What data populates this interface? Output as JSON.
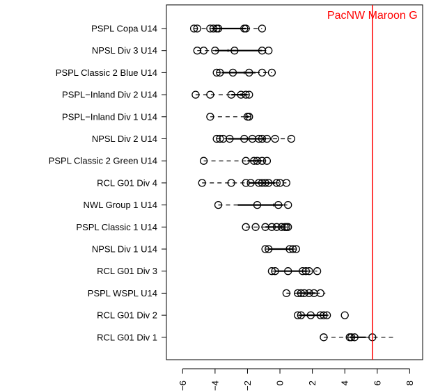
{
  "chart_data": {
    "type": "boxplot",
    "orientation": "horizontal",
    "title": "",
    "xlabel": "",
    "ylabel": "",
    "xlim": [
      -7,
      8.8
    ],
    "xticks": [
      -6,
      -4,
      -2,
      0,
      2,
      4,
      6,
      8
    ],
    "tick_labels_rotated": true,
    "grid": false,
    "legend": "none",
    "reference_line": {
      "x": 5.7,
      "label": "PacNW Maroon G",
      "color": "#ff0000"
    },
    "categories": [
      {
        "name": "PSPL Copa U14",
        "whisker_low": -5.3,
        "q1": -4.2,
        "median": -3.6,
        "q3": -2.1,
        "whisker_high": -1.1,
        "outliers": [
          -5.3,
          -5.1,
          -4.3,
          -4.1,
          -3.9,
          -3.8,
          -2.2,
          -2.1,
          -1.1
        ]
      },
      {
        "name": "NPSL Div 3 U14",
        "whisker_low": -5.1,
        "q1": -4.0,
        "median": -3.2,
        "q3": -1.1,
        "whisker_high": -0.7,
        "outliers": [
          -5.1,
          -4.7,
          -4.0,
          -2.8,
          -1.1,
          -0.7
        ]
      },
      {
        "name": "PSPL Classic 2 Blue U14",
        "whisker_low": -3.9,
        "q1": -3.6,
        "median": -2.2,
        "q3": -1.5,
        "whisker_high": -0.5,
        "outliers": [
          -3.9,
          -3.7,
          -2.9,
          -1.9,
          -1.1,
          -0.5
        ]
      },
      {
        "name": "PSPL−Inland Div 2 U14",
        "whisker_low": -5.2,
        "q1": -3.0,
        "median": -2.4,
        "q3": -2.0,
        "whisker_high": -1.9,
        "outliers": [
          -5.2,
          -4.3,
          -3.0,
          -2.4,
          -2.1,
          -1.9
        ]
      },
      {
        "name": "PSPL−Inland Div 1 U14",
        "whisker_low": -4.3,
        "q1": -2.1,
        "median": -2.0,
        "q3": -1.9,
        "whisker_high": -1.8,
        "outliers": [
          -4.3,
          -2.0,
          -1.9
        ]
      },
      {
        "name": "NPSL Div 2 U14",
        "whisker_low": -3.9,
        "q1": -3.2,
        "median": -2.0,
        "q3": -0.9,
        "whisker_high": 0.7,
        "outliers": [
          -3.9,
          -3.7,
          -3.5,
          -3.1,
          -2.2,
          -1.7,
          -1.3,
          -1.1,
          -0.8,
          -0.3,
          0.7
        ]
      },
      {
        "name": "PSPL Classic 2 Green U14",
        "whisker_low": -4.7,
        "q1": -2.0,
        "median": -1.5,
        "q3": -1.1,
        "whisker_high": -0.8,
        "outliers": [
          -4.7,
          -2.1,
          -1.6,
          -1.4,
          -1.1,
          -0.8
        ]
      },
      {
        "name": "RCL G01 Div 4",
        "whisker_low": -4.8,
        "q1": -1.9,
        "median": -1.0,
        "q3": -0.3,
        "whisker_high": 0.4,
        "outliers": [
          -4.8,
          -3.0,
          -2.1,
          -1.8,
          -1.3,
          -1.1,
          -0.9,
          -0.7,
          -0.2,
          0.0,
          0.4
        ]
      },
      {
        "name": "NWL Group 1 U14",
        "whisker_low": -3.8,
        "q1": -2.6,
        "median": -0.4,
        "q3": 0.2,
        "whisker_high": 0.5,
        "outliers": [
          -3.8,
          -1.4,
          -0.1,
          0.5
        ]
      },
      {
        "name": "PSPL Classic 1 U14",
        "whisker_low": -2.1,
        "q1": -0.9,
        "median": 0.0,
        "q3": 0.3,
        "whisker_high": 0.5,
        "outliers": [
          -2.1,
          -1.5,
          -0.9,
          -0.5,
          -0.2,
          0.1,
          0.3,
          0.4,
          0.5
        ]
      },
      {
        "name": "NPSL Div 1 U14",
        "whisker_low": -0.9,
        "q1": -0.7,
        "median": 0.6,
        "q3": 0.8,
        "whisker_high": 1.0,
        "outliers": [
          -0.9,
          -0.7,
          0.6,
          0.8,
          1.0
        ]
      },
      {
        "name": "RCL G01 Div 3",
        "whisker_low": -0.5,
        "q1": -0.3,
        "median": 1.4,
        "q3": 1.7,
        "whisker_high": 2.3,
        "outliers": [
          -0.5,
          -0.3,
          0.5,
          1.4,
          1.6,
          1.8,
          2.3
        ]
      },
      {
        "name": "PSPL WSPL U14",
        "whisker_low": 0.4,
        "q1": 1.1,
        "median": 1.8,
        "q3": 2.2,
        "whisker_high": 2.8,
        "outliers": [
          0.4,
          1.1,
          1.3,
          1.5,
          1.8,
          2.1,
          2.5
        ]
      },
      {
        "name": "RCL G01 Div 2",
        "whisker_low": 1.1,
        "q1": 1.2,
        "median": 2.3,
        "q3": 2.9,
        "whisker_high": 3.0,
        "outliers": [
          1.1,
          1.3,
          1.9,
          2.5,
          2.7,
          2.9,
          4.0
        ]
      },
      {
        "name": "RCL G01 Div 1",
        "whisker_low": 2.7,
        "q1": 4.3,
        "median": 4.6,
        "q3": 5.3,
        "whisker_high": 7.1,
        "outliers": [
          2.7,
          4.3,
          4.4,
          4.6,
          5.7
        ]
      }
    ]
  }
}
